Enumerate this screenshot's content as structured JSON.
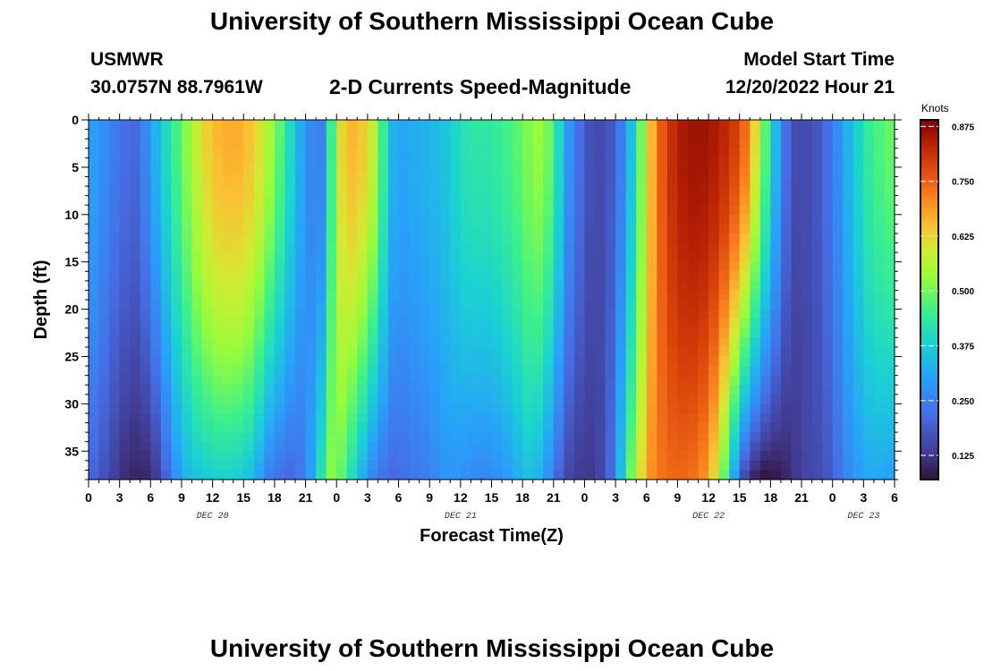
{
  "header": {
    "title": "University of Southern Mississippi Ocean Cube",
    "station_name": "USMWR",
    "station_coords": "30.0757N  88.7961W",
    "plot_title": "2-D Currents Speed-Magnitude",
    "model_start_label": "Model Start Time",
    "model_start_value": "12/20/2022 Hour 21"
  },
  "footer": {
    "title": "University of Southern Mississippi Ocean Cube"
  },
  "chart_data": {
    "type": "heatmap",
    "title": "2-D Currents Speed-Magnitude",
    "xlabel": "Forecast Time(Z)",
    "ylabel": "Depth (ft)",
    "colorbar_label": "Knots",
    "colorbar_ticks": [
      0.125,
      0.25,
      0.375,
      0.5,
      0.625,
      0.75,
      0.875
    ],
    "colorbar_range": [
      0.07,
      0.89
    ],
    "x_range_hours": [
      0,
      78
    ],
    "y_range_ft": [
      0,
      38
    ],
    "y_ticks": [
      0,
      5,
      10,
      15,
      20,
      25,
      30,
      35
    ],
    "x_tick_labels": [
      "0",
      "3",
      "6",
      "9",
      "12",
      "15",
      "18",
      "21",
      "0",
      "3",
      "6",
      "9",
      "12",
      "15",
      "18",
      "21",
      "0",
      "3",
      "6",
      "9",
      "12",
      "15",
      "18",
      "21",
      "0",
      "3",
      "6"
    ],
    "date_labels": [
      {
        "label": "DEC 20",
        "hour": 12
      },
      {
        "label": "DEC 21",
        "hour": 36
      },
      {
        "label": "DEC 22",
        "hour": 60
      },
      {
        "label": "DEC 23",
        "hour": 75
      }
    ],
    "time_hours": [
      0,
      1,
      2,
      3,
      4,
      5,
      6,
      7,
      8,
      9,
      10,
      11,
      12,
      13,
      14,
      15,
      16,
      17,
      18,
      19,
      20,
      21,
      22,
      23,
      24,
      25,
      26,
      27,
      28,
      29,
      30,
      31,
      32,
      33,
      34,
      35,
      36,
      37,
      38,
      39,
      40,
      41,
      42,
      43,
      44,
      45,
      46,
      47,
      48,
      49,
      50,
      51,
      52,
      53,
      54,
      55,
      56,
      57,
      58,
      59,
      60,
      61,
      62,
      63,
      64,
      65,
      66,
      67,
      68,
      69,
      70,
      71,
      72,
      73,
      74,
      75,
      76,
      77,
      78
    ],
    "surface_speed_knots": [
      0.3,
      0.27,
      0.24,
      0.22,
      0.21,
      0.26,
      0.33,
      0.4,
      0.46,
      0.52,
      0.58,
      0.63,
      0.66,
      0.67,
      0.67,
      0.65,
      0.61,
      0.55,
      0.48,
      0.4,
      0.32,
      0.26,
      0.25,
      0.45,
      0.62,
      0.66,
      0.64,
      0.58,
      0.45,
      0.33,
      0.31,
      0.32,
      0.33,
      0.34,
      0.36,
      0.39,
      0.42,
      0.43,
      0.43,
      0.44,
      0.46,
      0.48,
      0.51,
      0.53,
      0.5,
      0.4,
      0.28,
      0.22,
      0.17,
      0.16,
      0.18,
      0.24,
      0.35,
      0.5,
      0.66,
      0.76,
      0.82,
      0.85,
      0.86,
      0.86,
      0.85,
      0.83,
      0.8,
      0.74,
      0.62,
      0.48,
      0.34,
      0.22,
      0.16,
      0.16,
      0.18,
      0.22,
      0.27,
      0.33,
      0.39,
      0.44,
      0.47,
      0.49,
      0.5
    ],
    "bottom_speed_knots": [
      0.2,
      0.17,
      0.14,
      0.11,
      0.1,
      0.1,
      0.13,
      0.2,
      0.28,
      0.33,
      0.36,
      0.37,
      0.38,
      0.38,
      0.37,
      0.35,
      0.3,
      0.24,
      0.22,
      0.21,
      0.23,
      0.3,
      0.42,
      0.52,
      0.48,
      0.4,
      0.32,
      0.25,
      0.22,
      0.21,
      0.22,
      0.23,
      0.24,
      0.26,
      0.28,
      0.28,
      0.27,
      0.26,
      0.26,
      0.27,
      0.29,
      0.32,
      0.35,
      0.33,
      0.27,
      0.2,
      0.15,
      0.13,
      0.13,
      0.15,
      0.21,
      0.35,
      0.5,
      0.62,
      0.7,
      0.73,
      0.74,
      0.74,
      0.73,
      0.7,
      0.62,
      0.48,
      0.3,
      0.15,
      0.09,
      0.07,
      0.08,
      0.1,
      0.13,
      0.15,
      0.16,
      0.18,
      0.22,
      0.26,
      0.29,
      0.31,
      0.31,
      0.3,
      0.28
    ],
    "grid": false,
    "legend": "colorbar right"
  }
}
